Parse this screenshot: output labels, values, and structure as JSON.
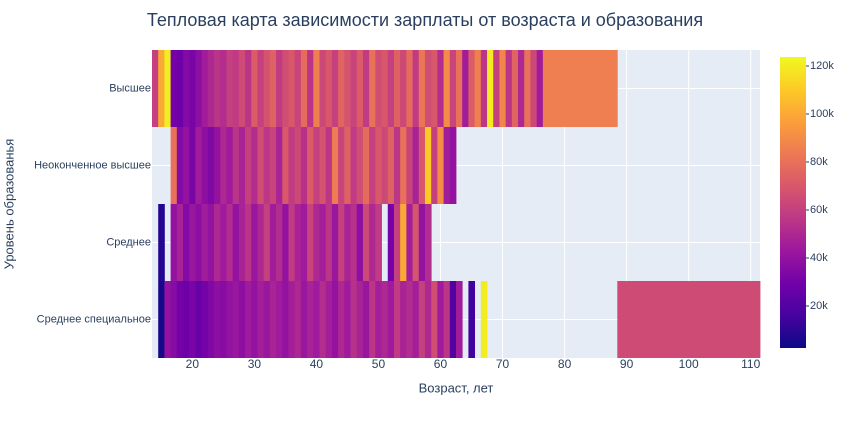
{
  "chart_data": {
    "type": "heatmap",
    "title": "Тепловая карта зависимости зарплаты от возраста и образования",
    "x_label": "Возраст, лет",
    "y_label": "Уровень образованья",
    "x": [
      14,
      15,
      16,
      17,
      18,
      19,
      20,
      21,
      22,
      23,
      24,
      25,
      26,
      27,
      28,
      29,
      30,
      31,
      32,
      33,
      34,
      35,
      36,
      37,
      38,
      39,
      40,
      41,
      42,
      43,
      44,
      45,
      46,
      47,
      48,
      49,
      50,
      51,
      52,
      53,
      54,
      55,
      56,
      57,
      58,
      59,
      60,
      61,
      62,
      63,
      64,
      65,
      66,
      67,
      68,
      69,
      70,
      71,
      72,
      73,
      74,
      75,
      76,
      77,
      100
    ],
    "y": [
      "Среднее специальное",
      "Среднее",
      "Неоконченное высшее",
      "Высшее"
    ],
    "z": [
      [
        null,
        5000,
        40000,
        36000,
        30000,
        28000,
        32000,
        26000,
        30000,
        34000,
        38000,
        36000,
        40000,
        42000,
        38000,
        44000,
        40000,
        46000,
        42000,
        48000,
        44000,
        40000,
        46000,
        50000,
        42000,
        48000,
        44000,
        52000,
        46000,
        40000,
        50000,
        44000,
        54000,
        48000,
        42000,
        56000,
        46000,
        50000,
        44000,
        58000,
        48000,
        52000,
        46000,
        60000,
        50000,
        66000,
        44000,
        56000,
        20000,
        45000,
        null,
        15000,
        null,
        120000,
        null,
        null,
        null,
        null,
        null,
        null,
        null,
        null,
        null,
        null,
        65000
      ],
      [
        null,
        8000,
        null,
        40000,
        48000,
        35000,
        42000,
        38000,
        45000,
        40000,
        50000,
        44000,
        52000,
        40000,
        48000,
        55000,
        42000,
        50000,
        60000,
        45000,
        52000,
        40000,
        58000,
        48000,
        44000,
        62000,
        50000,
        46000,
        56000,
        42000,
        60000,
        48000,
        54000,
        38000,
        64000,
        50000,
        58000,
        null,
        30000,
        60000,
        100000,
        46000,
        68000,
        40000,
        52000,
        null,
        null,
        null,
        null,
        null,
        null,
        null,
        null,
        null,
        null,
        null,
        null,
        null,
        null,
        null,
        null,
        null,
        null,
        null,
        null
      ],
      [
        null,
        null,
        null,
        80000,
        35000,
        40000,
        32000,
        45000,
        38000,
        34000,
        40000,
        50000,
        44000,
        55000,
        48000,
        60000,
        52000,
        66000,
        56000,
        62000,
        48000,
        70000,
        58000,
        64000,
        54000,
        72000,
        60000,
        68000,
        56000,
        84000,
        62000,
        74000,
        58000,
        66000,
        78000,
        60000,
        70000,
        64000,
        74000,
        56000,
        80000,
        62000,
        48000,
        70000,
        110000,
        60000,
        90000,
        45000,
        40000,
        null,
        null,
        null,
        null,
        null,
        null,
        null,
        null,
        null,
        null,
        null,
        null,
        null,
        null,
        null,
        null
      ],
      [
        60000,
        100000,
        120000,
        30000,
        28000,
        35000,
        32000,
        38000,
        45000,
        50000,
        55000,
        52000,
        60000,
        58000,
        65000,
        55000,
        72000,
        60000,
        68000,
        74000,
        58000,
        66000,
        70000,
        62000,
        78000,
        55000,
        85000,
        64000,
        70000,
        60000,
        75000,
        68000,
        62000,
        72000,
        58000,
        80000,
        66000,
        70000,
        60000,
        74000,
        64000,
        78000,
        58000,
        82000,
        66000,
        70000,
        52000,
        90000,
        62000,
        80000,
        45000,
        72000,
        85000,
        56000,
        120000,
        60000,
        88000,
        55000,
        75000,
        50000,
        80000,
        64000,
        45000,
        85000,
        null
      ]
    ],
    "xlim": [
      13.5,
      111.5
    ],
    "xticks": [
      20,
      30,
      40,
      50,
      60,
      70,
      80,
      90,
      100,
      110
    ],
    "zlim": [
      2500,
      123750
    ],
    "zticks": [
      {
        "value": 20000,
        "label": "20k"
      },
      {
        "value": 40000,
        "label": "40k"
      },
      {
        "value": 60000,
        "label": "60k"
      },
      {
        "value": 80000,
        "label": "80k"
      },
      {
        "value": 100000,
        "label": "100k"
      },
      {
        "value": 120000,
        "label": "120k"
      }
    ],
    "colorscale": [
      "#0d0887",
      "#46039f",
      "#7201a8",
      "#9c179e",
      "#bd3786",
      "#d8576b",
      "#ed7953",
      "#fb9f3a",
      "#fdca26",
      "#f0f921"
    ],
    "grid": true
  }
}
